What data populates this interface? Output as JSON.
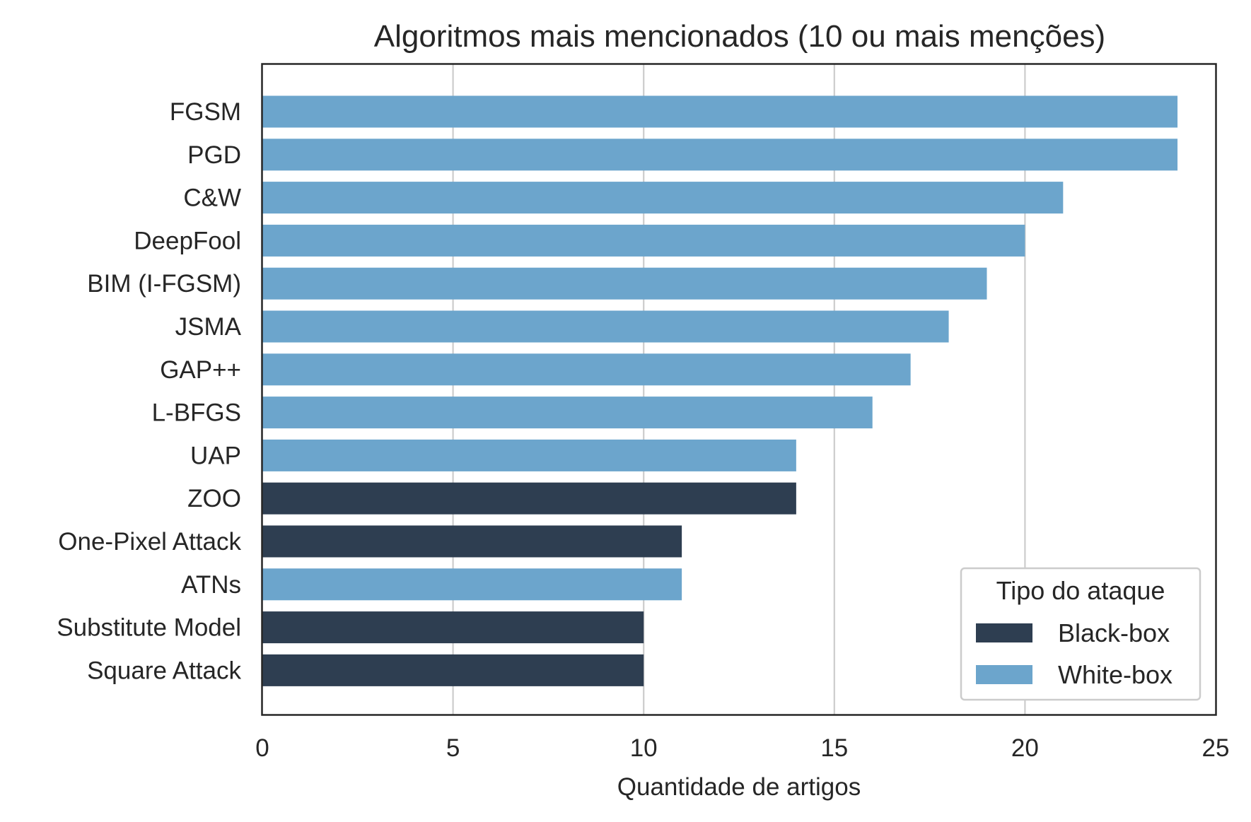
{
  "chart_data": {
    "type": "bar",
    "orientation": "horizontal",
    "title": "Algoritmos mais mencionados (10 ou mais menções)",
    "xlabel": "Quantidade de artigos",
    "ylabel": "",
    "xlim": [
      0,
      25
    ],
    "xticks": [
      0,
      5,
      10,
      15,
      20,
      25
    ],
    "grid": "x",
    "categories": [
      "FGSM",
      "PGD",
      "C&W",
      "DeepFool",
      "BIM (I-FGSM)",
      "JSMA",
      "GAP++",
      "L-BFGS",
      "UAP",
      "ZOO",
      "One-Pixel Attack",
      "ATNs",
      "Substitute Model",
      "Square Attack"
    ],
    "values": [
      24,
      24,
      21,
      20,
      19,
      18,
      17,
      16,
      14,
      14,
      11,
      11,
      10,
      10
    ],
    "types": [
      "White-box",
      "White-box",
      "White-box",
      "White-box",
      "White-box",
      "White-box",
      "White-box",
      "White-box",
      "White-box",
      "Black-box",
      "Black-box",
      "White-box",
      "Black-box",
      "Black-box"
    ],
    "colors": {
      "Black-box": "#2e3e51",
      "White-box": "#6ca5cc"
    },
    "legend": {
      "title": "Tipo do ataque",
      "placement": "lower-right",
      "entries": [
        "Black-box",
        "White-box"
      ]
    }
  }
}
